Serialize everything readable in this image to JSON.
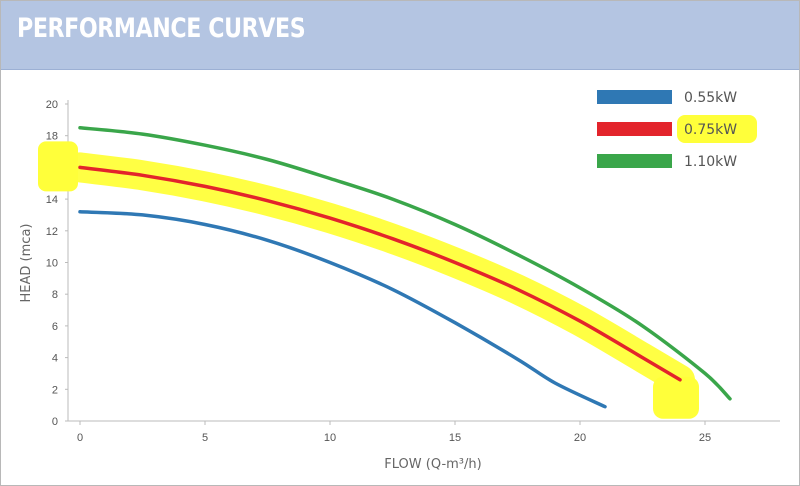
{
  "header": {
    "title": "PERFORMANCE CURVES"
  },
  "chart_data": {
    "type": "line",
    "title": "PERFORMANCE CURVES",
    "xlabel": "FLOW (Q-m³/h)",
    "ylabel": "HEAD (mca)",
    "xlim": [
      0,
      28
    ],
    "ylim": [
      0,
      20
    ],
    "xticks": [
      0,
      5,
      10,
      15,
      20,
      25
    ],
    "yticks": [
      0,
      2,
      4,
      6,
      8,
      10,
      12,
      14,
      16,
      18,
      20
    ],
    "legend_position": "top-right",
    "grid": false,
    "series": [
      {
        "name": "0.55kW",
        "color": "#2f78b4",
        "x": [
          0,
          2.5,
          5,
          7.5,
          10,
          12.5,
          15,
          17.5,
          19,
          21
        ],
        "y": [
          13.2,
          13.0,
          12.4,
          11.4,
          10.0,
          8.3,
          6.2,
          3.9,
          2.4,
          0.9
        ]
      },
      {
        "name": "0.75kW",
        "color": "#e3242b",
        "highlighted": true,
        "x": [
          0,
          2.5,
          5,
          7.5,
          10,
          12.5,
          15,
          17.5,
          20,
          22.5,
          24
        ],
        "y": [
          16.0,
          15.5,
          14.8,
          13.9,
          12.8,
          11.5,
          10.0,
          8.3,
          6.3,
          4.0,
          2.6
        ]
      },
      {
        "name": "1.10kW",
        "color": "#3aa64a",
        "x": [
          0,
          2.5,
          5,
          7.5,
          10,
          12.5,
          15,
          17.5,
          20,
          22.5,
          25,
          26
        ],
        "y": [
          18.5,
          18.1,
          17.4,
          16.5,
          15.3,
          14.0,
          12.4,
          10.5,
          8.4,
          6.0,
          3.0,
          1.4
        ]
      }
    ],
    "highlight_color": "#ffff3a"
  }
}
